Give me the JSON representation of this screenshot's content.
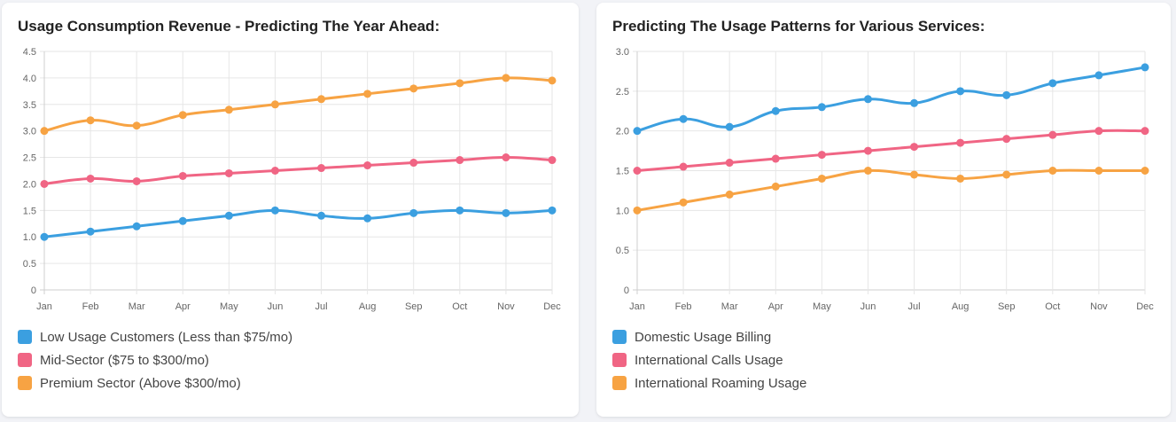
{
  "panels": [
    {
      "title": "Usage Consumption Revenue - Predicting The Year Ahead:",
      "chart_data": {
        "type": "line",
        "categories": [
          "Jan",
          "Feb",
          "Mar",
          "Apr",
          "May",
          "Jun",
          "Jul",
          "Aug",
          "Sep",
          "Oct",
          "Nov",
          "Dec"
        ],
        "ylim": [
          0,
          4.5
        ],
        "yticks": [
          "0",
          "0.5",
          "1.0",
          "1.5",
          "2.0",
          "2.5",
          "3.0",
          "3.5",
          "4.0",
          "4.5"
        ],
        "grid": true,
        "legend_position": "bottom",
        "series": [
          {
            "name": "Low Usage Customers (Less than $75/mo)",
            "color": "#3b9fe0",
            "values": [
              1.0,
              1.1,
              1.2,
              1.3,
              1.4,
              1.5,
              1.4,
              1.35,
              1.45,
              1.5,
              1.45,
              1.5
            ]
          },
          {
            "name": "Mid-Sector ($75 to $300/mo)",
            "color": "#f06584",
            "values": [
              2.0,
              2.1,
              2.05,
              2.15,
              2.2,
              2.25,
              2.3,
              2.35,
              2.4,
              2.45,
              2.5,
              2.45
            ]
          },
          {
            "name": "Premium Sector (Above $300/mo)",
            "color": "#f7a343",
            "values": [
              3.0,
              3.2,
              3.1,
              3.3,
              3.4,
              3.5,
              3.6,
              3.7,
              3.8,
              3.9,
              4.0,
              3.95
            ]
          }
        ]
      }
    },
    {
      "title": "Predicting The Usage Patterns for Various Services:",
      "chart_data": {
        "type": "line",
        "categories": [
          "Jan",
          "Feb",
          "Mar",
          "Apr",
          "May",
          "Jun",
          "Jul",
          "Aug",
          "Sep",
          "Oct",
          "Nov",
          "Dec"
        ],
        "ylim": [
          0,
          3.0
        ],
        "yticks": [
          "0",
          "0.5",
          "1.0",
          "1.5",
          "2.0",
          "2.5",
          "3.0"
        ],
        "grid": true,
        "legend_position": "bottom",
        "series": [
          {
            "name": "Domestic Usage Billing",
            "color": "#3b9fe0",
            "values": [
              2.0,
              2.15,
              2.05,
              2.25,
              2.3,
              2.4,
              2.35,
              2.5,
              2.45,
              2.6,
              2.7,
              2.8
            ]
          },
          {
            "name": "International Calls Usage",
            "color": "#f06584",
            "values": [
              1.5,
              1.55,
              1.6,
              1.65,
              1.7,
              1.75,
              1.8,
              1.85,
              1.9,
              1.95,
              2.0,
              2.0
            ]
          },
          {
            "name": "International Roaming Usage",
            "color": "#f7a343",
            "values": [
              1.0,
              1.1,
              1.2,
              1.3,
              1.4,
              1.5,
              1.45,
              1.4,
              1.45,
              1.5,
              1.5,
              1.5
            ]
          }
        ]
      }
    }
  ]
}
